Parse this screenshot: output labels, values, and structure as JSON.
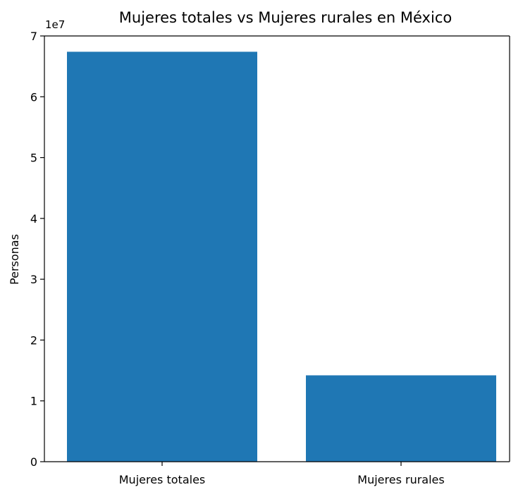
{
  "chart_data": {
    "type": "bar",
    "title": "Mujeres totales vs Mujeres rurales en México",
    "xlabel": "",
    "ylabel": "Personas",
    "y_offset_label": "1e7",
    "categories": [
      "Mujeres totales",
      "Mujeres rurales"
    ],
    "values": [
      67400000,
      14200000
    ],
    "ylim": [
      0,
      70000000
    ],
    "yticks": [
      0,
      10000000,
      20000000,
      30000000,
      40000000,
      50000000,
      60000000,
      70000000
    ],
    "ytick_labels": [
      "0",
      "1",
      "2",
      "3",
      "4",
      "5",
      "6",
      "7"
    ],
    "bar_color": "#1f77b4",
    "grid": false,
    "legend": "none"
  }
}
